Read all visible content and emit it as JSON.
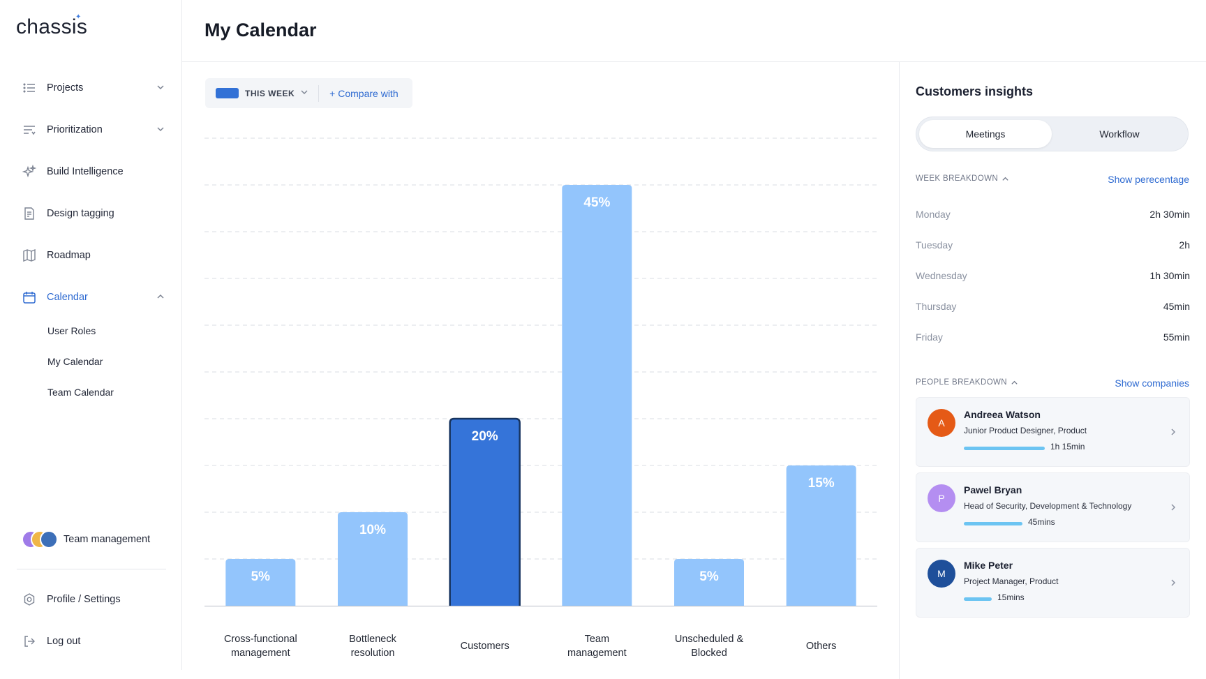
{
  "app": {
    "logo": "chassis"
  },
  "sidebar": {
    "items": [
      {
        "label": "Projects",
        "icon": "list-icon"
      },
      {
        "label": "Prioritization",
        "icon": "filter-lines-icon"
      },
      {
        "label": "Build Intelligence",
        "icon": "sparkles-icon"
      },
      {
        "label": "Design tagging",
        "icon": "document-icon"
      },
      {
        "label": "Roadmap",
        "icon": "map-icon"
      },
      {
        "label": "Calendar",
        "icon": "calendar-icon",
        "active": true
      }
    ],
    "calendar_sub": [
      "User Roles",
      "My Calendar",
      "Team Calendar"
    ],
    "team_label": "Team management",
    "profile_label": "Profile / Settings",
    "logout_label": "Log out"
  },
  "header": {
    "title": "My Calendar"
  },
  "filter": {
    "period_label": "THIS WEEK",
    "compare_label": "+ Compare with"
  },
  "chart_data": {
    "type": "bar",
    "categories": [
      [
        "Cross-functional",
        "management"
      ],
      [
        "Bottleneck",
        "resolution"
      ],
      [
        "Customers"
      ],
      [
        "Team",
        "management"
      ],
      [
        "Unscheduled &",
        "Blocked"
      ],
      [
        "Others"
      ]
    ],
    "values": [
      5,
      10,
      20,
      45,
      5,
      15
    ],
    "data_labels": [
      "5%",
      "10%",
      "20%",
      "45%",
      "5%",
      "15%"
    ],
    "highlighted_index": 2,
    "ylim": [
      0,
      50
    ],
    "grid": true,
    "colors": {
      "bar": "#93c5fc",
      "highlight": "#3574d9",
      "highlight_border": "#17345f"
    }
  },
  "panel": {
    "title": "Customers insights",
    "tabs": [
      {
        "label": "Meetings",
        "selected": true
      },
      {
        "label": "Workflow",
        "selected": false
      }
    ],
    "week_breakdown": {
      "header": "WEEK BREAKDOWN",
      "link": "Show perecentage",
      "days": [
        {
          "day": "Monday",
          "value": "2h 30min"
        },
        {
          "day": "Tuesday",
          "value": "2h"
        },
        {
          "day": "Wednesday",
          "value": "1h 30min"
        },
        {
          "day": "Thursday",
          "value": "45min"
        },
        {
          "day": "Friday",
          "value": "55min"
        }
      ]
    },
    "people_breakdown": {
      "header": "PEOPLE BREAKDOWN",
      "link": "Show companies",
      "people": [
        {
          "initial": "A",
          "name": "Andreea Watson",
          "role": "Junior Product Designer, Product",
          "time": "1h 15min",
          "progress": 0.75,
          "color": "#e55a16"
        },
        {
          "initial": "P",
          "name": "Pawel Bryan",
          "role": "Head of Security, Development & Technology",
          "time": "45mins",
          "progress": 0.54,
          "color": "#b48ef1"
        },
        {
          "initial": "M",
          "name": "Mike Peter",
          "role": "Project Manager, Product",
          "time": "15mins",
          "progress": 0.26,
          "color": "#1e4f9a"
        }
      ]
    }
  }
}
